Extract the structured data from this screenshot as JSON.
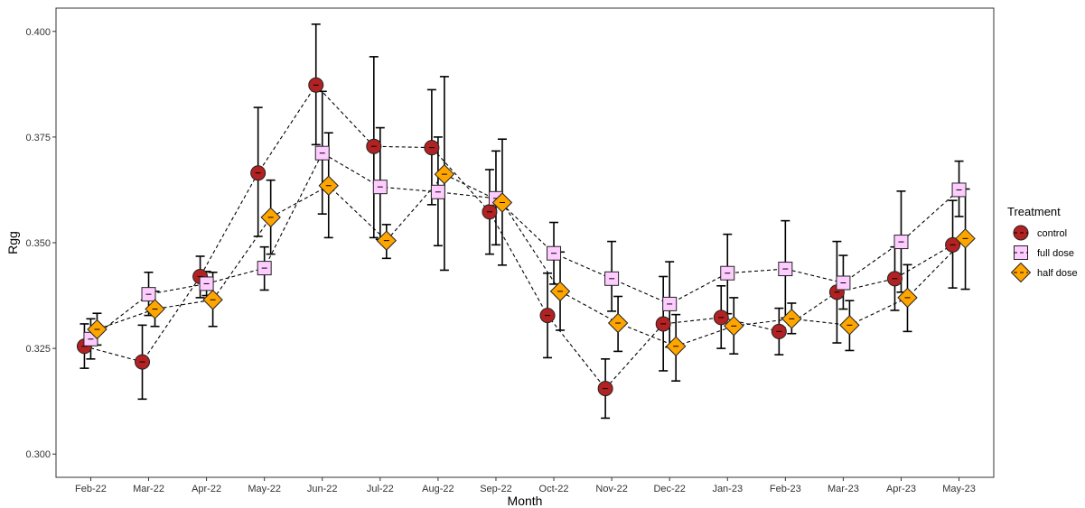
{
  "chart_data": {
    "type": "line",
    "xlabel": "Month",
    "ylabel": "Rgg",
    "ylim": [
      0.2945,
      0.4055
    ],
    "yticks": [
      "0.300",
      "0.325",
      "0.350",
      "0.375",
      "0.400"
    ],
    "grid": false,
    "legend": {
      "title": "Treatment",
      "placement": "right"
    },
    "categories": [
      "Feb-22",
      "Mar-22",
      "Apr-22",
      "May-22",
      "Jun-22",
      "Jul-22",
      "Aug-22",
      "Sep-22",
      "Oct-22",
      "Nov-22",
      "Dec-22",
      "Jan-23",
      "Feb-23",
      "Mar-23",
      "Apr-23",
      "May-23"
    ],
    "series": [
      {
        "name": "control",
        "marker": "circle",
        "color": "#b22222",
        "values": [
          0.3255,
          0.3218,
          0.342,
          0.3665,
          0.3873,
          0.3728,
          0.3725,
          0.3573,
          0.3328,
          0.3155,
          0.3308,
          0.3323,
          0.329,
          0.3383,
          0.3415,
          0.3495
        ],
        "lower": [
          0.3203,
          0.313,
          0.337,
          0.3515,
          0.3732,
          0.3512,
          0.359,
          0.3473,
          0.3228,
          0.3085,
          0.3197,
          0.325,
          0.3235,
          0.3263,
          0.334,
          0.3393
        ],
        "upper": [
          0.3308,
          0.3305,
          0.3468,
          0.382,
          0.4017,
          0.394,
          0.3862,
          0.3673,
          0.3428,
          0.3225,
          0.342,
          0.3398,
          0.3345,
          0.3503,
          0.349,
          0.36
        ]
      },
      {
        "name": "full dose",
        "marker": "square",
        "color": "#ffccff",
        "values": [
          0.3272,
          0.3378,
          0.3403,
          0.344,
          0.3712,
          0.3632,
          0.362,
          0.3605,
          0.3475,
          0.3415,
          0.3355,
          0.3428,
          0.3438,
          0.3405,
          0.3502,
          0.3625
        ],
        "lower": [
          0.3225,
          0.3328,
          0.3375,
          0.3388,
          0.3568,
          0.3508,
          0.3493,
          0.3495,
          0.3402,
          0.3338,
          0.3253,
          0.3332,
          0.3322,
          0.3343,
          0.3383,
          0.3562
        ],
        "upper": [
          0.332,
          0.343,
          0.3432,
          0.349,
          0.3858,
          0.3772,
          0.375,
          0.3717,
          0.3548,
          0.3503,
          0.3455,
          0.352,
          0.3552,
          0.347,
          0.3622,
          0.3693
        ]
      },
      {
        "name": "half dose",
        "marker": "diamond",
        "color": "#ffa500",
        "values": [
          0.3295,
          0.3343,
          0.3365,
          0.356,
          0.3635,
          0.3505,
          0.3662,
          0.3595,
          0.3385,
          0.331,
          0.3255,
          0.3303,
          0.332,
          0.3305,
          0.337,
          0.351
        ],
        "lower": [
          0.3258,
          0.3302,
          0.3302,
          0.3473,
          0.3512,
          0.3463,
          0.3435,
          0.3447,
          0.3293,
          0.3243,
          0.3173,
          0.3237,
          0.3285,
          0.3245,
          0.329,
          0.339
        ],
        "upper": [
          0.3333,
          0.3385,
          0.343,
          0.3648,
          0.376,
          0.3543,
          0.3893,
          0.3745,
          0.3478,
          0.3373,
          0.333,
          0.337,
          0.3357,
          0.3363,
          0.3448,
          0.3627
        ]
      }
    ]
  }
}
